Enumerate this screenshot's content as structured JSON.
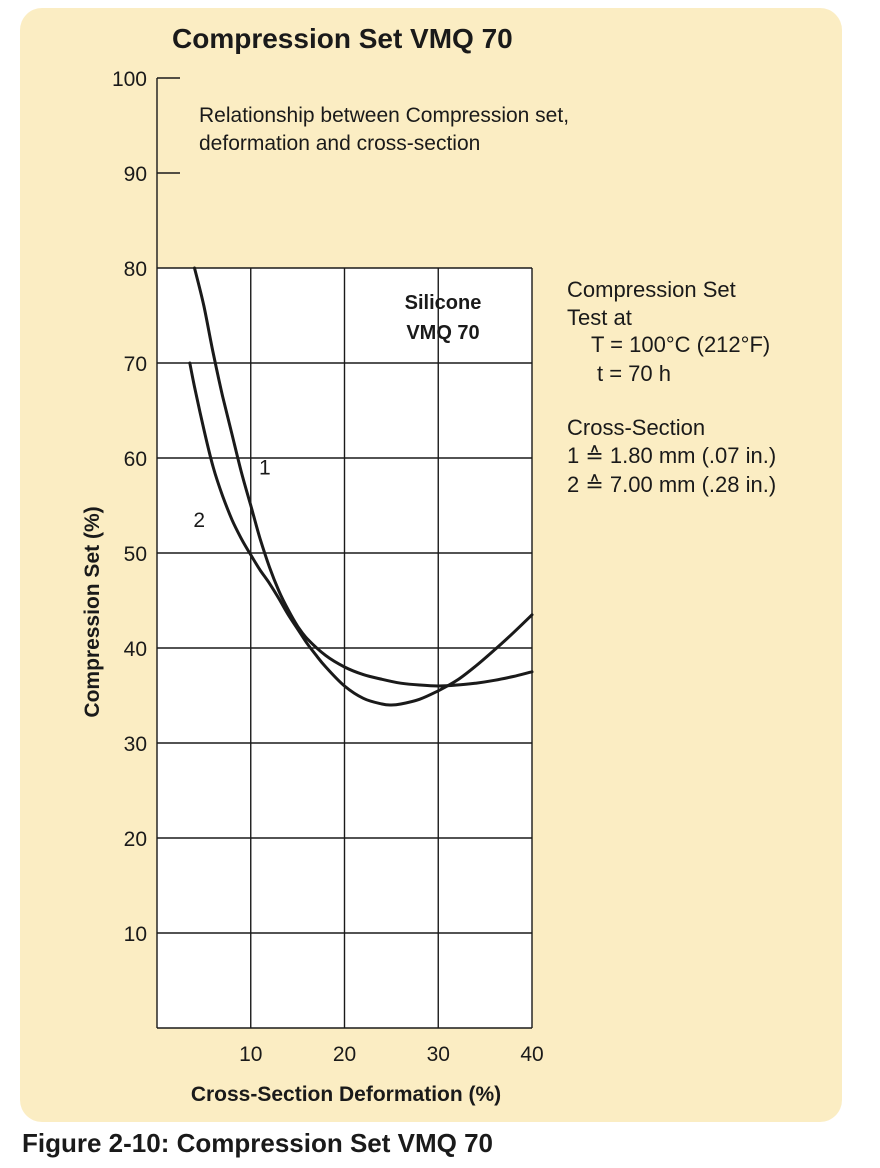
{
  "caption": "Figure 2-10: Compression Set VMQ 70",
  "chart_data": {
    "type": "line",
    "title": "Compression Set VMQ 70",
    "subtitle_lines": [
      "Relationship between Compression set,",
      "deformation and cross-section"
    ],
    "xlabel": "Cross-Section Deformation (%)",
    "ylabel": "Compression Set (%)",
    "xlim": [
      0,
      40
    ],
    "ylim": [
      0,
      100
    ],
    "grid_ylim": [
      0,
      80
    ],
    "xticks": [
      10,
      20,
      30,
      40
    ],
    "yticks": [
      10,
      20,
      30,
      40,
      50,
      60,
      70,
      80,
      90,
      100
    ],
    "grid": true,
    "inset_label": [
      "Silicone",
      "VMQ 70"
    ],
    "series": [
      {
        "name": "1",
        "x": [
          4,
          5,
          6,
          7,
          8,
          9,
          10,
          11,
          12,
          13,
          14,
          15,
          16,
          18,
          20,
          22,
          24,
          26,
          28,
          30,
          32,
          34,
          36,
          38,
          40
        ],
        "y": [
          80,
          76,
          71,
          66.5,
          62.5,
          58.5,
          55,
          51.5,
          48.5,
          46,
          44,
          42.3,
          41,
          39.2,
          38,
          37.2,
          36.7,
          36.3,
          36.1,
          36,
          36.1,
          36.3,
          36.6,
          37,
          37.5
        ]
      },
      {
        "name": "2",
        "x": [
          3.5,
          4,
          5,
          6,
          7,
          8,
          9,
          10,
          11,
          12,
          13,
          14,
          15,
          16,
          17,
          18,
          20,
          22,
          24,
          25,
          26,
          28,
          30,
          32,
          34,
          36,
          38,
          40
        ],
        "y": [
          70,
          67.5,
          63,
          59,
          56,
          53.5,
          51.5,
          49.8,
          48.2,
          46.8,
          45.2,
          43.5,
          42,
          40.5,
          39.2,
          38,
          36,
          34.7,
          34.1,
          34,
          34.1,
          34.6,
          35.5,
          36.6,
          38.1,
          39.8,
          41.6,
          43.5
        ]
      }
    ],
    "series_labels": [
      {
        "text": "1",
        "x": 11.5,
        "y": 59
      },
      {
        "text": "2",
        "x": 4.5,
        "y": 53.5
      }
    ],
    "legend_block": {
      "test_title": "Compression Set",
      "test_sub": "Test at",
      "temperature": "T = 100°C (212°F)",
      "time": "t = 70 h",
      "cross_title": "Cross-Section",
      "cross_items": [
        "1 ≙ 1.80 mm (.07 in.)",
        "2 ≙ 7.00 mm (.28 in.)"
      ]
    }
  }
}
